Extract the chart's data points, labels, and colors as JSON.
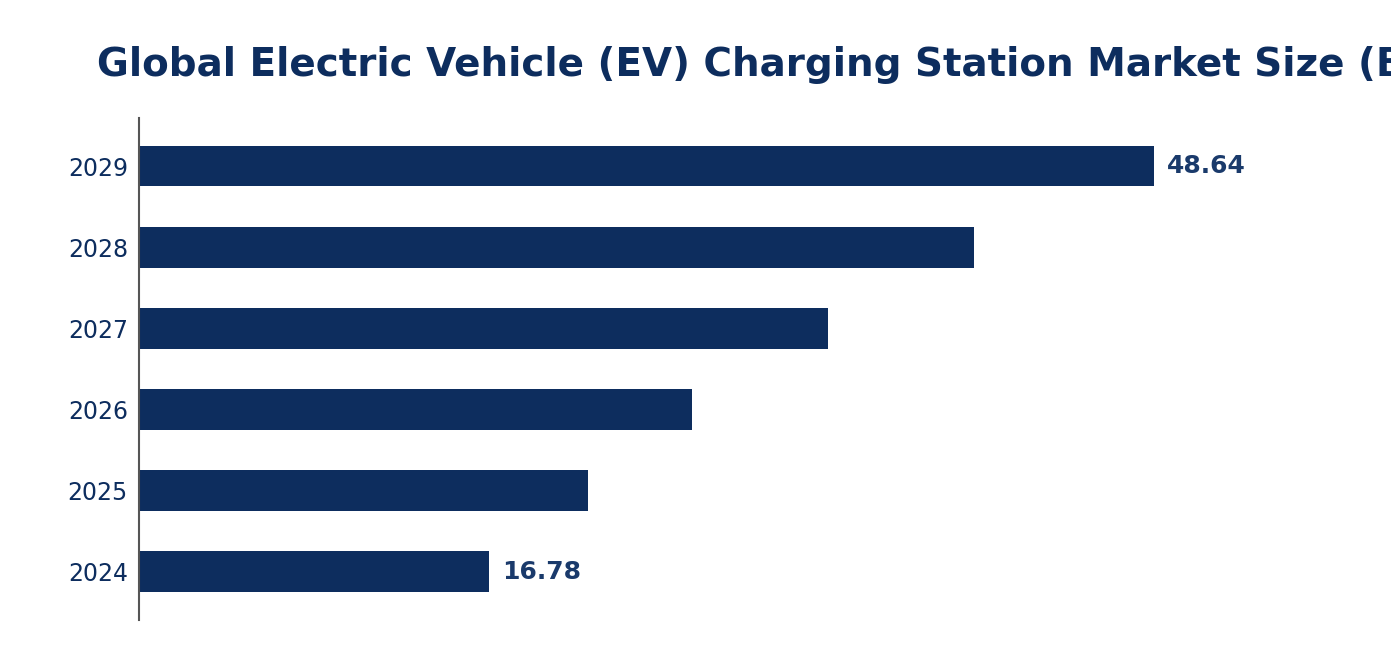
{
  "title": "Global Electric Vehicle (EV) Charging Station Market Size (Billion USD)",
  "years": [
    "2024",
    "2025",
    "2026",
    "2027",
    "2028",
    "2029"
  ],
  "values": [
    16.78,
    21.5,
    26.5,
    33.0,
    40.0,
    48.64
  ],
  "labeled_bars": {
    "2024": "16.78",
    "2029": "48.64"
  },
  "bar_color": "#0d2d5e",
  "label_color": "#1a3a6b",
  "background_color": "#ffffff",
  "title_color": "#0d2d5e",
  "title_fontsize": 28,
  "bar_label_fontsize": 18,
  "ytick_fontsize": 17,
  "xlim": [
    0,
    56
  ],
  "bar_height": 0.5
}
